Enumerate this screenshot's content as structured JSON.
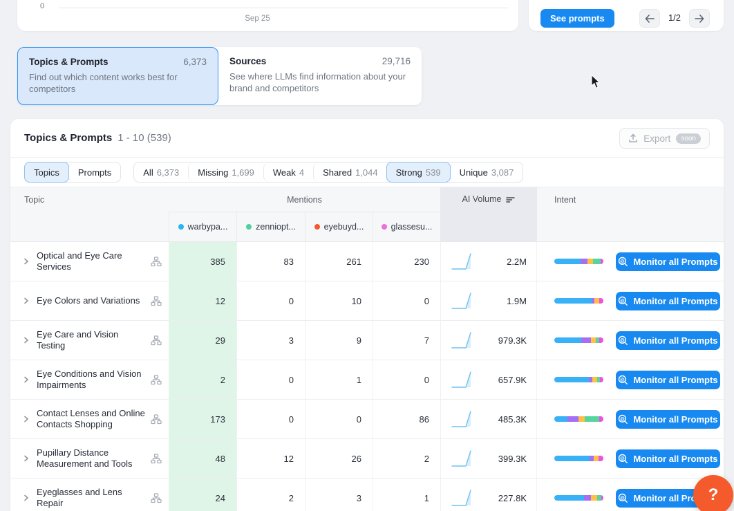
{
  "chart_panel": {
    "y_tick": "0",
    "x_tick": "Sep 25"
  },
  "prompts_panel": {
    "see_prompts": "See prompts",
    "page": "1/2"
  },
  "tab_cards": [
    {
      "title": "Topics & Prompts",
      "count": "6,373",
      "description": "Find out which content works best for competitors",
      "selected": true
    },
    {
      "title": "Sources",
      "count": "29,716",
      "description": "See where LLMs find information about your brand and competitors",
      "selected": false
    }
  ],
  "table": {
    "title": "Topics & Prompts",
    "range": "1 - 10 (539)",
    "export": {
      "label": "Export",
      "badge": "soon"
    },
    "view_toggle": [
      {
        "label": "Topics",
        "selected": true
      },
      {
        "label": "Prompts",
        "selected": false
      }
    ],
    "filters": [
      {
        "label": "All",
        "count": "6,373",
        "selected": false
      },
      {
        "label": "Missing",
        "count": "1,699",
        "selected": false
      },
      {
        "label": "Weak",
        "count": "4",
        "selected": false
      },
      {
        "label": "Shared",
        "count": "1,044",
        "selected": false
      },
      {
        "label": "Strong",
        "count": "539",
        "selected": true
      },
      {
        "label": "Unique",
        "count": "3,087",
        "selected": false
      }
    ],
    "columns": {
      "topic": "Topic",
      "mentions": "Mentions",
      "ai_volume": "AI Volume",
      "intent": "Intent"
    },
    "competitors": [
      {
        "name": "warbypa...",
        "color": "#2BB3F3"
      },
      {
        "name": "zenniopt...",
        "color": "#4ED0A1"
      },
      {
        "name": "eyebuyd...",
        "color": "#F4582F"
      },
      {
        "name": "glassesu...",
        "color": "#F06FD4"
      }
    ],
    "intent_colors": [
      "#38B1F6",
      "#A46EF5",
      "#FFC043",
      "#56D5A0",
      "#EE52DD"
    ],
    "monitor_button": "Monitor all Prompts",
    "rows": [
      {
        "topic": "Optical and Eye Care Services",
        "mentions": [
          "385",
          "83",
          "261",
          "230"
        ],
        "ai_volume": "2.2M",
        "intent": [
          54,
          14,
          11,
          16,
          5
        ]
      },
      {
        "topic": "Eye Colors and Variations",
        "mentions": [
          "12",
          "0",
          "10",
          "0"
        ],
        "ai_volume": "1.9M",
        "intent": [
          76,
          6,
          9,
          0,
          9
        ]
      },
      {
        "topic": "Eye Care and Vision Testing",
        "mentions": [
          "29",
          "3",
          "9",
          "7"
        ],
        "ai_volume": "979.3K",
        "intent": [
          55,
          20,
          9,
          8,
          8
        ]
      },
      {
        "topic": "Eye Conditions and Vision Impairments",
        "mentions": [
          "2",
          "0",
          "1",
          "0"
        ],
        "ai_volume": "657.9K",
        "intent": [
          70,
          8,
          10,
          5,
          7
        ]
      },
      {
        "topic": "Contact Lenses and Online Contacts Shopping",
        "mentions": [
          "173",
          "0",
          "0",
          "86"
        ],
        "ai_volume": "485.3K",
        "intent": [
          27,
          22,
          13,
          30,
          8
        ]
      },
      {
        "topic": "Pupillary Distance Measurement and Tools",
        "mentions": [
          "48",
          "12",
          "26",
          "2"
        ],
        "ai_volume": "399.3K",
        "intent": [
          72,
          8,
          10,
          0,
          10
        ]
      },
      {
        "topic": "Eyeglasses and Lens Repair",
        "mentions": [
          "24",
          "2",
          "3",
          "1"
        ],
        "ai_volume": "227.8K",
        "intent": [
          60,
          14,
          14,
          8,
          4
        ]
      }
    ]
  },
  "help_button": "?"
}
